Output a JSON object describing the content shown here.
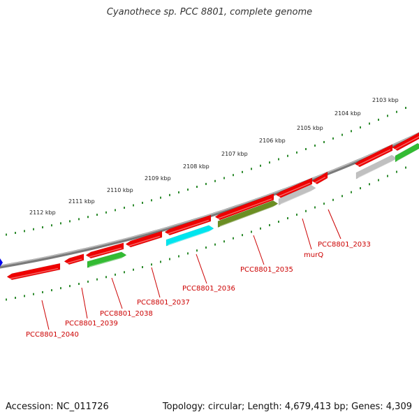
{
  "title": "Cyanothece sp. PCC 8801, complete genome",
  "footer": {
    "accession": "Accession: NC_011726",
    "summary": "Topology: circular; Length: 4,679,413 bp; Genes: 4,309"
  },
  "colors": {
    "backbone": "#888888",
    "tick": "#2e8b2e",
    "cds_forward": "#ee0000",
    "cds_reverse_green": "#33bb33",
    "cds_cyan": "#00e5ee",
    "cds_olive": "#6b8e23",
    "cds_gray": "#c0c0c0",
    "label": "#cc0000",
    "scale_text": "#222222"
  },
  "scale_labels": [
    "2112 kbp",
    "2111 kbp",
    "2110 kbp",
    "2109 kbp",
    "2108 kbp",
    "2107 kbp",
    "2106 kbp",
    "2105 kbp",
    "2104 kbp",
    "2103 kbp"
  ],
  "gene_labels": [
    "PCC8801_2040",
    "PCC8801_2039",
    "PCC8801_2038",
    "PCC8801_2037",
    "PCC8801_2036",
    "PCC8801_2035",
    "murQ",
    "PCC8801_2033"
  ]
}
